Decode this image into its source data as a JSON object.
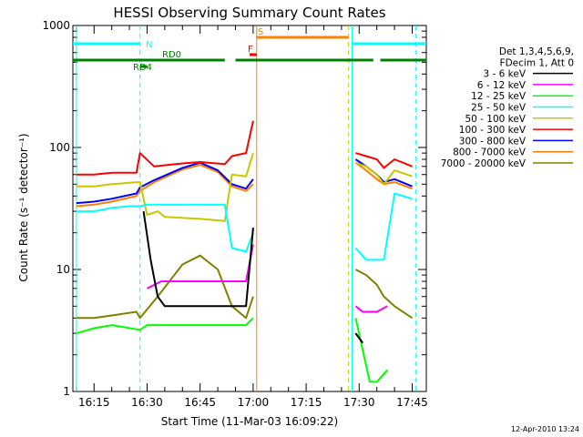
{
  "chart_data": {
    "type": "line",
    "title": "HESSI Observing Summary Count Rates",
    "xlabel": "Start Time (11-Mar-03 16:09:22)",
    "ylabel": "Count Rate (s⁻¹ detector⁻¹)",
    "y_scale": "log",
    "ylim": [
      1,
      1000
    ],
    "xlim": [
      "16:09",
      "17:49"
    ],
    "y_ticks": [
      {
        "value": 1,
        "label": "1"
      },
      {
        "value": 10,
        "label": "10"
      },
      {
        "value": 100,
        "label": "100"
      },
      {
        "value": 1000,
        "label": "1000"
      }
    ],
    "x_ticks": [
      "16:15",
      "16:30",
      "16:45",
      "17:00",
      "17:15",
      "17:30",
      "17:45"
    ],
    "legend_title": [
      "Det 1,3,4,5,6,9,",
      "FDecim 1, Att 0"
    ],
    "legend_placement": "right",
    "footer_timestamp": "12-Apr-2010 13:24",
    "series": [
      {
        "name": "3 - 6 keV",
        "color": "#000000",
        "x": [
          "16:10",
          "16:28",
          "16:29",
          "16:31",
          "16:33",
          "16:35",
          "16:45",
          "16:55",
          "16:58",
          "17:00",
          "17:01",
          "17:28",
          "17:29",
          "17:31",
          "17:33"
        ],
        "y": [
          null,
          null,
          30,
          12,
          6,
          5,
          5,
          5,
          5,
          22,
          null,
          null,
          3,
          2.5,
          null
        ]
      },
      {
        "name": "6 - 12 keV",
        "color": "#ff00ff",
        "x": [
          "16:10",
          "16:28",
          "16:30",
          "16:34",
          "16:45",
          "16:55",
          "16:58",
          "17:00",
          "17:01",
          "17:28",
          "17:29",
          "17:31",
          "17:33",
          "17:35",
          "17:38"
        ],
        "y": [
          null,
          null,
          7,
          8,
          8,
          8,
          8,
          16,
          null,
          null,
          5,
          4.5,
          4.5,
          4.5,
          5
        ]
      },
      {
        "name": "12 - 25 keV",
        "color": "#00ff00",
        "x": [
          "16:10",
          "16:15",
          "16:20",
          "16:28",
          "16:30",
          "16:35",
          "16:45",
          "16:55",
          "16:58",
          "17:00",
          "17:01",
          "17:28",
          "17:29",
          "17:33",
          "17:35",
          "17:38"
        ],
        "y": [
          3,
          3.3,
          3.5,
          3.2,
          3.5,
          3.5,
          3.5,
          3.5,
          3.5,
          4,
          null,
          null,
          4,
          1.2,
          1.2,
          1.5
        ]
      },
      {
        "name": "25 - 50 keV",
        "color": "#00ffff",
        "x": [
          "16:10",
          "16:15",
          "16:20",
          "16:25",
          "16:28",
          "16:30",
          "16:35",
          "16:45",
          "16:52",
          "16:54",
          "16:58",
          "17:00",
          "17:01",
          "17:28",
          "17:29",
          "17:32",
          "17:35",
          "17:37",
          "17:40",
          "17:45"
        ],
        "y": [
          30,
          30,
          32,
          33,
          33,
          34,
          34,
          34,
          34,
          15,
          14,
          20,
          null,
          null,
          15,
          12,
          12,
          12,
          42,
          38
        ]
      },
      {
        "name": "50 - 100 keV",
        "color": "#c8c800",
        "x": [
          "16:10",
          "16:15",
          "16:20",
          "16:27",
          "16:28",
          "16:30",
          "16:33",
          "16:35",
          "16:45",
          "16:52",
          "16:54",
          "16:58",
          "17:00",
          "17:01",
          "17:28",
          "17:29",
          "17:32",
          "17:35",
          "17:37",
          "17:40",
          "17:45"
        ],
        "y": [
          48,
          48,
          50,
          52,
          52,
          28,
          30,
          27,
          26,
          25,
          60,
          58,
          90,
          null,
          null,
          75,
          70,
          60,
          50,
          65,
          58
        ]
      },
      {
        "name": "100 - 300 keV",
        "color": "#ff0000",
        "x": [
          "16:10",
          "16:15",
          "16:20",
          "16:27",
          "16:28",
          "16:32",
          "16:40",
          "16:45",
          "16:52",
          "16:54",
          "16:58",
          "17:00",
          "17:01",
          "17:28",
          "17:29",
          "17:32",
          "17:35",
          "17:37",
          "17:40",
          "17:45"
        ],
        "y": [
          60,
          60,
          62,
          62,
          90,
          70,
          74,
          76,
          73,
          85,
          90,
          165,
          null,
          null,
          90,
          85,
          80,
          68,
          80,
          70
        ]
      },
      {
        "name": "300 - 800 keV",
        "color": "#0000ff",
        "x": [
          "16:10",
          "16:15",
          "16:20",
          "16:27",
          "16:28",
          "16:32",
          "16:40",
          "16:45",
          "16:50",
          "16:54",
          "16:58",
          "17:00",
          "17:01",
          "17:28",
          "17:29",
          "17:32",
          "17:35",
          "17:37",
          "17:40",
          "17:45"
        ],
        "y": [
          35,
          36,
          38,
          42,
          47,
          54,
          68,
          75,
          65,
          50,
          46,
          55,
          null,
          null,
          80,
          70,
          60,
          52,
          55,
          48
        ]
      },
      {
        "name": "800 - 7000 keV",
        "color": "#ff8000",
        "x": [
          "16:10",
          "16:15",
          "16:20",
          "16:27",
          "16:28",
          "16:32",
          "16:40",
          "16:45",
          "16:50",
          "16:54",
          "16:58",
          "17:00",
          "17:01",
          "17:28",
          "17:29",
          "17:32",
          "17:35",
          "17:37",
          "17:40",
          "17:45"
        ],
        "y": [
          33,
          34,
          36,
          40,
          44,
          52,
          66,
          72,
          63,
          48,
          44,
          50,
          null,
          null,
          75,
          65,
          55,
          50,
          52,
          46
        ]
      },
      {
        "name": "7000 - 20000 keV",
        "color": "#808000",
        "x": [
          "16:10",
          "16:15",
          "16:20",
          "16:27",
          "16:28",
          "16:33",
          "16:40",
          "16:45",
          "16:50",
          "16:54",
          "16:58",
          "17:00",
          "17:01",
          "17:28",
          "17:29",
          "17:32",
          "17:35",
          "17:37",
          "17:40",
          "17:45"
        ],
        "y": [
          4,
          4,
          4.2,
          4.5,
          4,
          6,
          11,
          13,
          10,
          5,
          4,
          6,
          null,
          null,
          10,
          9,
          7.5,
          6,
          5,
          4
        ]
      }
    ],
    "vertical_markers": [
      {
        "time": "16:10",
        "color": "#00ffff",
        "style": "solid"
      },
      {
        "time": "16:28",
        "color": "#00ffff",
        "style": "dashed"
      },
      {
        "time": "17:01",
        "color": "#ff8000",
        "style": "solid"
      },
      {
        "time": "17:27",
        "color": "#c8c800",
        "style": "dashed"
      },
      {
        "time": "17:28",
        "color": "#00ffff",
        "style": "solid"
      },
      {
        "time": "17:46",
        "color": "#00ffff",
        "style": "dashed"
      }
    ],
    "flag_bars": [
      {
        "label": "N",
        "color": "#00ffff",
        "segments": [
          [
            "16:09",
            "16:28"
          ],
          [
            "17:28",
            "17:49"
          ]
        ]
      },
      {
        "label": "S",
        "color": "#ff8000",
        "segments": [
          [
            "17:01",
            "17:27"
          ]
        ]
      },
      {
        "label": "F",
        "color": "#ff0000",
        "segments": [
          [
            "16:59",
            "17:01"
          ]
        ]
      },
      {
        "label": "RD0",
        "color": "#008000",
        "segments": [
          [
            "16:09",
            "16:52"
          ],
          [
            "16:55",
            "17:28"
          ],
          [
            "17:28",
            "17:34"
          ],
          [
            "17:36",
            "17:49"
          ]
        ]
      },
      {
        "label": "RD4",
        "color": "#008000",
        "segments": [
          [
            "16:28",
            "16:30"
          ]
        ]
      }
    ]
  }
}
